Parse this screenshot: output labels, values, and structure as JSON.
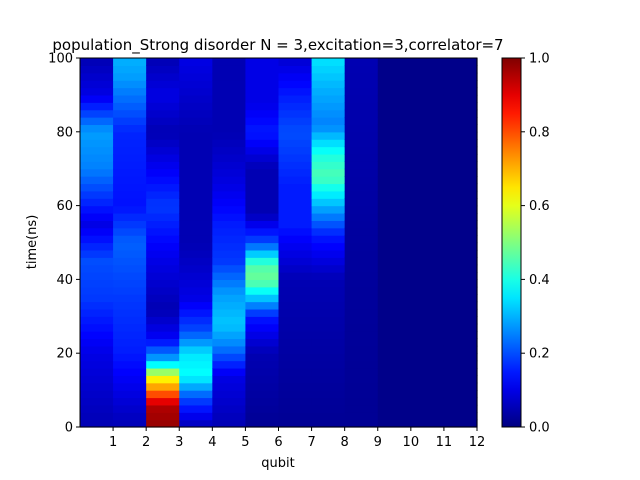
{
  "chart_data": {
    "type": "heatmap",
    "title": "population_Strong disorder  N =  3,excitation=3,correlator=7",
    "xlabel": "qubit",
    "ylabel": "time(ns)",
    "x_ticks": [
      "1",
      "2",
      "3",
      "4",
      "5",
      "6",
      "7",
      "8",
      "9",
      "10",
      "11",
      "12"
    ],
    "y_ticks": [
      "0",
      "20",
      "40",
      "60",
      "80",
      "100"
    ],
    "xlim": [
      0,
      12
    ],
    "ylim": [
      0,
      100
    ],
    "colormap": "jet",
    "colorbar": {
      "range": [
        0.0,
        1.0
      ],
      "ticks": [
        "0.0",
        "0.2",
        "0.4",
        "0.6",
        "0.8",
        "1.0"
      ]
    },
    "time_rows": 50,
    "qubit_columns": 12,
    "column_profiles": [
      {
        "qubit": 1,
        "keys": [
          [
            0,
            0.05
          ],
          [
            20,
            0.1
          ],
          [
            35,
            0.18
          ],
          [
            45,
            0.2
          ],
          [
            55,
            0.1
          ],
          [
            70,
            0.25
          ],
          [
            80,
            0.28
          ],
          [
            90,
            0.1
          ],
          [
            100,
            0.05
          ]
        ]
      },
      {
        "qubit": 2,
        "keys": [
          [
            0,
            0.05
          ],
          [
            10,
            0.1
          ],
          [
            20,
            0.15
          ],
          [
            35,
            0.18
          ],
          [
            50,
            0.22
          ],
          [
            60,
            0.14
          ],
          [
            80,
            0.16
          ],
          [
            95,
            0.28
          ],
          [
            100,
            0.3
          ]
        ]
      },
      {
        "qubit": 3,
        "keys": [
          [
            0,
            0.98
          ],
          [
            6,
            0.95
          ],
          [
            10,
            0.75
          ],
          [
            14,
            0.6
          ],
          [
            18,
            0.3
          ],
          [
            24,
            0.12
          ],
          [
            32,
            0.05
          ],
          [
            45,
            0.1
          ],
          [
            60,
            0.18
          ],
          [
            80,
            0.05
          ],
          [
            90,
            0.1
          ],
          [
            100,
            0.05
          ]
        ]
      },
      {
        "qubit": 4,
        "keys": [
          [
            0,
            0.05
          ],
          [
            8,
            0.2
          ],
          [
            14,
            0.38
          ],
          [
            20,
            0.35
          ],
          [
            26,
            0.2
          ],
          [
            35,
            0.1
          ],
          [
            50,
            0.05
          ],
          [
            80,
            0.05
          ],
          [
            100,
            0.1
          ]
        ]
      },
      {
        "qubit": 5,
        "keys": [
          [
            0,
            0.05
          ],
          [
            14,
            0.1
          ],
          [
            22,
            0.25
          ],
          [
            28,
            0.32
          ],
          [
            36,
            0.28
          ],
          [
            45,
            0.18
          ],
          [
            55,
            0.15
          ],
          [
            65,
            0.1
          ],
          [
            80,
            0.05
          ],
          [
            100,
            0.05
          ]
        ]
      },
      {
        "qubit": 6,
        "keys": [
          [
            0,
            0.02
          ],
          [
            20,
            0.05
          ],
          [
            30,
            0.15
          ],
          [
            36,
            0.35
          ],
          [
            40,
            0.48
          ],
          [
            44,
            0.45
          ],
          [
            50,
            0.2
          ],
          [
            58,
            0.05
          ],
          [
            70,
            0.05
          ],
          [
            80,
            0.15
          ],
          [
            88,
            0.1
          ],
          [
            100,
            0.1
          ]
        ]
      },
      {
        "qubit": 7,
        "keys": [
          [
            0,
            0.02
          ],
          [
            40,
            0.05
          ],
          [
            55,
            0.15
          ],
          [
            65,
            0.15
          ],
          [
            80,
            0.2
          ],
          [
            90,
            0.15
          ],
          [
            100,
            0.08
          ]
        ]
      },
      {
        "qubit": 8,
        "keys": [
          [
            0,
            0.02
          ],
          [
            40,
            0.05
          ],
          [
            52,
            0.15
          ],
          [
            60,
            0.3
          ],
          [
            68,
            0.45
          ],
          [
            74,
            0.4
          ],
          [
            82,
            0.25
          ],
          [
            92,
            0.3
          ],
          [
            100,
            0.35
          ]
        ]
      },
      {
        "qubit": 9,
        "keys": [
          [
            0,
            0.02
          ],
          [
            50,
            0.03
          ],
          [
            100,
            0.05
          ]
        ]
      },
      {
        "qubit": 10,
        "keys": [
          [
            0,
            0.01
          ],
          [
            100,
            0.01
          ]
        ]
      },
      {
        "qubit": 11,
        "keys": [
          [
            0,
            0.01
          ],
          [
            100,
            0.01
          ]
        ]
      },
      {
        "qubit": 12,
        "keys": [
          [
            0,
            0.01
          ],
          [
            100,
            0.01
          ]
        ]
      }
    ]
  }
}
